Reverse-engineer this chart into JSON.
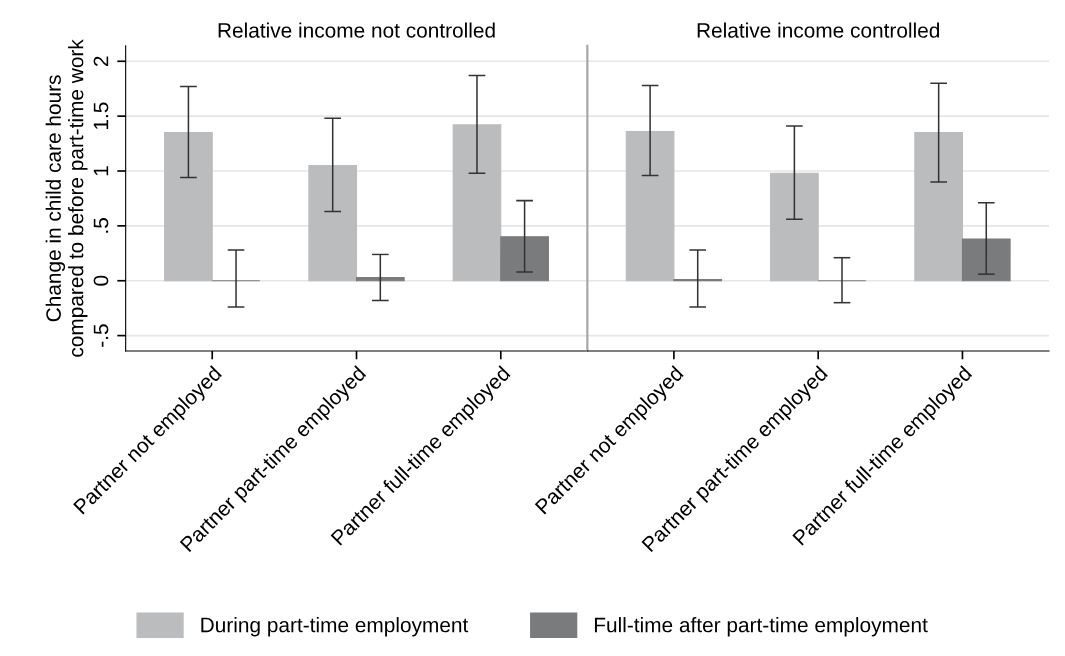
{
  "chart_data": [
    {
      "type": "bar",
      "title": "Relative income not controlled",
      "ylabel": "Change in child care hours\ncompared to before part-time work",
      "categories": [
        "Partner not employed",
        "Partner part-time employed",
        "Partner full-time employed"
      ],
      "series": [
        {
          "name": "During part-time employment",
          "color": "#bbbcbe",
          "values": [
            1.35,
            1.05,
            1.42
          ],
          "errors": [
            [
              0.94,
              1.77
            ],
            [
              0.63,
              1.48
            ],
            [
              0.98,
              1.87
            ]
          ]
        },
        {
          "name": "Full-time after part-time employment",
          "color": "#7a7b7d",
          "values": [
            0.0,
            0.03,
            0.4
          ],
          "errors": [
            [
              -0.24,
              0.28
            ],
            [
              -0.18,
              0.24
            ],
            [
              0.08,
              0.73
            ]
          ]
        }
      ],
      "ylim": [
        -0.64,
        2.14
      ],
      "yticks": [
        {
          "value": -0.5,
          "label": "-.5"
        },
        0,
        {
          "value": 0.5,
          "label": ".5"
        },
        1,
        1.5,
        2
      ],
      "grid": "y",
      "legend": "bottom"
    },
    {
      "type": "bar",
      "title": "Relative income controlled",
      "categories": [
        "Partner not employed",
        "Partner part-time employed",
        "Partner full-time employed"
      ],
      "series": [
        {
          "name": "During part-time employment",
          "color": "#bbbcbe",
          "values": [
            1.36,
            0.98,
            1.35
          ],
          "errors": [
            [
              0.96,
              1.78
            ],
            [
              0.56,
              1.41
            ],
            [
              0.9,
              1.8
            ]
          ]
        },
        {
          "name": "Full-time after part-time employment",
          "color": "#7a7b7d",
          "values": [
            0.01,
            0.0,
            0.38
          ],
          "errors": [
            [
              -0.24,
              0.28
            ],
            [
              -0.2,
              0.21
            ],
            [
              0.06,
              0.71
            ]
          ]
        }
      ],
      "ylim": [
        -0.64,
        2.14
      ],
      "yticks": [
        -0.5,
        0,
        0.5,
        1,
        1.5,
        2
      ],
      "grid": "y",
      "tick_labels": "x",
      "legend": "bottom"
    }
  ]
}
